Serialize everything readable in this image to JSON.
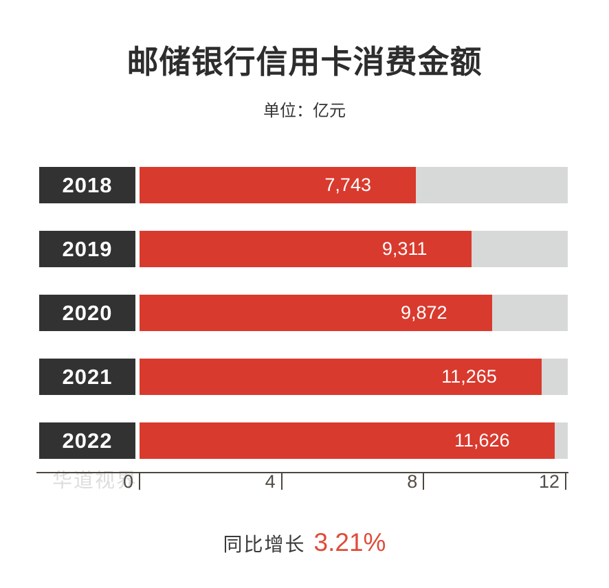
{
  "title": "邮储银行信用卡消费金额",
  "subtitle": "单位：亿元",
  "watermark": "华道视界",
  "footer": {
    "label": "同比增长",
    "value": "3.21%"
  },
  "colors": {
    "bar": "#d93a2e",
    "track": "#d7d8d8",
    "year_box": "#323232",
    "axis": "#4c463f",
    "footer_accent": "#e04b3a",
    "watermark": "#dddddd"
  },
  "chart_data": {
    "type": "bar",
    "orientation": "horizontal",
    "title": "邮储银行信用卡消费金额",
    "unit_label": "单位：亿元",
    "categories": [
      "2018",
      "2019",
      "2020",
      "2021",
      "2022"
    ],
    "values": [
      7743,
      9311,
      9872,
      11265,
      11626
    ],
    "value_labels": [
      "7,743",
      "9,311",
      "9,872",
      "11,265",
      "11,626"
    ],
    "xlim": [
      0,
      12000
    ],
    "x_ticks": [
      0,
      4000,
      8000,
      12000
    ],
    "x_tick_labels": [
      "0",
      "4",
      "8",
      "12"
    ],
    "grid": false,
    "legend": false,
    "annotation": "同比增长 3.21%"
  }
}
